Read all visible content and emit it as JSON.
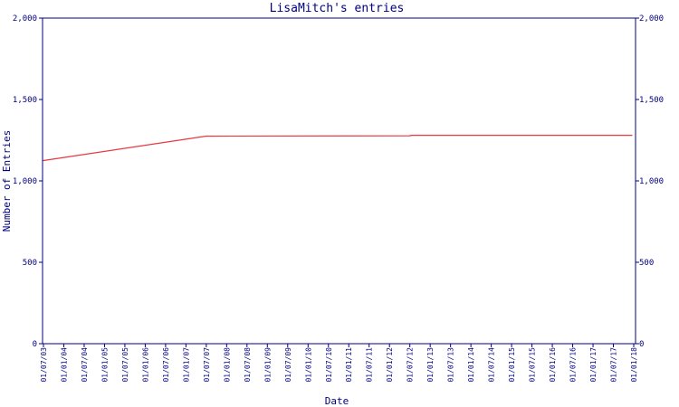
{
  "chart_data": {
    "type": "line",
    "title": "LisaMitch's entries",
    "xlabel": "Date",
    "ylabel": "Number of Entries",
    "ylim": [
      0,
      2000
    ],
    "yticks": [
      0,
      500,
      1000,
      1500,
      2000
    ],
    "ytick_labels": [
      "0",
      "500",
      "1,000",
      "1,500",
      "2,000"
    ],
    "x_tick_labels": [
      "01/07/03",
      "01/01/04",
      "01/07/04",
      "01/01/05",
      "01/07/05",
      "01/01/06",
      "01/07/06",
      "01/01/07",
      "01/07/07",
      "01/01/08",
      "01/07/08",
      "01/01/09",
      "01/07/09",
      "01/01/10",
      "01/07/10",
      "01/01/11",
      "01/07/11",
      "01/01/12",
      "01/07/12",
      "01/01/13",
      "01/07/13",
      "01/01/14",
      "01/07/14",
      "01/01/15",
      "01/07/15",
      "01/01/16",
      "01/07/16",
      "01/01/17",
      "01/07/17",
      "01/01/18"
    ],
    "grid": false,
    "series": [
      {
        "color": "#e8383d",
        "points": [
          {
            "x": "2003-07-01",
            "y": 1125
          },
          {
            "x": "2007-07-01",
            "y": 1275
          },
          {
            "x": "2012-07-01",
            "y": 1277
          },
          {
            "x": "2012-07-15",
            "y": 1280
          },
          {
            "x": "2017-12-15",
            "y": 1280
          }
        ]
      }
    ]
  },
  "colors": {
    "axis": "#000080",
    "text": "#000080",
    "series": "#e8383d"
  }
}
